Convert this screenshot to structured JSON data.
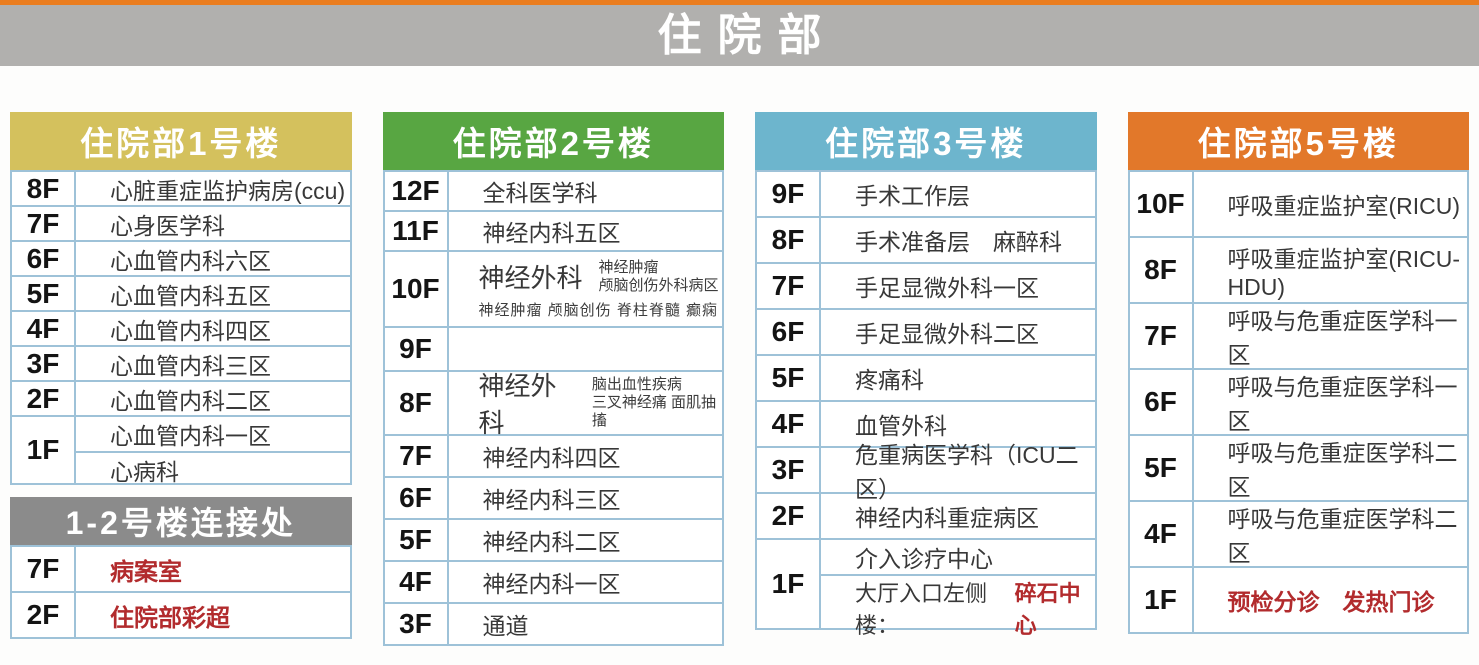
{
  "page": {
    "title": "住院部"
  },
  "colors": {
    "top_stripe": "#ea7d1f",
    "title_bar_gray": "#b1b0ae",
    "building1_header": "#d4c15d",
    "building2_header": "#58a642",
    "building3_header": "#6db5cd",
    "building5_header": "#e2782a",
    "connection_header": "#8b8b8b",
    "table_border": "#9ec2d8",
    "red_text": "#b22b2d"
  },
  "buildings": [
    {
      "name": "住院部1号楼",
      "rows": [
        {
          "floor": "8F",
          "dept": "心脏重症监护病房(ccu)"
        },
        {
          "floor": "7F",
          "dept": "心身医学科"
        },
        {
          "floor": "6F",
          "dept": "心血管内科六区"
        },
        {
          "floor": "5F",
          "dept": "心血管内科五区"
        },
        {
          "floor": "4F",
          "dept": "心血管内科四区"
        },
        {
          "floor": "3F",
          "dept": "心血管内科三区"
        },
        {
          "floor": "2F",
          "dept": "心血管内科二区"
        },
        {
          "floor": "1F",
          "dept": "心血管内科一区",
          "dept2": "心病科"
        }
      ]
    },
    {
      "name": "住院部2号楼",
      "rows": [
        {
          "floor": "12F",
          "dept": "全科医学科"
        },
        {
          "floor": "11F",
          "dept": "神经内科五区"
        },
        {
          "floor": "10F",
          "dept": "神经外科",
          "note_line1": "神经肿瘤",
          "note_line2": "颅脑创伤外科病区",
          "note_bottom": "神经肿瘤 颅脑创伤 脊柱脊髓 癫痫"
        },
        {
          "floor": "9F",
          "dept": ""
        },
        {
          "floor": "8F",
          "dept": "神经外科",
          "note_line1": "脑出血性疾病",
          "note_line2": "三叉神经痛 面肌抽搐"
        },
        {
          "floor": "7F",
          "dept": "神经内科四区"
        },
        {
          "floor": "6F",
          "dept": "神经内科三区"
        },
        {
          "floor": "5F",
          "dept": "神经内科二区"
        },
        {
          "floor": "4F",
          "dept": "神经内科一区"
        },
        {
          "floor": "3F",
          "dept": "通道"
        }
      ]
    },
    {
      "name": "住院部3号楼",
      "rows": [
        {
          "floor": "9F",
          "dept": "手术工作层"
        },
        {
          "floor": "8F",
          "dept": "手术准备层　麻醉科"
        },
        {
          "floor": "7F",
          "dept": "手足显微外科一区"
        },
        {
          "floor": "6F",
          "dept": "手足显微外科二区"
        },
        {
          "floor": "5F",
          "dept": "疼痛科"
        },
        {
          "floor": "4F",
          "dept": "血管外科"
        },
        {
          "floor": "3F",
          "dept": "危重病医学科（ICU二区）"
        },
        {
          "floor": "2F",
          "dept": "神经内科重症病区"
        },
        {
          "floor": "1F",
          "dept": "介入诊疗中心",
          "dept2_prefix": "大厅入口左侧楼：",
          "dept2_red": "碎石中心"
        }
      ]
    },
    {
      "name": "住院部5号楼",
      "rows": [
        {
          "floor": "10F",
          "dept": "呼吸重症监护室(RICU)"
        },
        {
          "floor": "8F",
          "dept": "呼吸重症监护室(RICU-HDU)"
        },
        {
          "floor": "7F",
          "dept": "呼吸与危重症医学科一区"
        },
        {
          "floor": "6F",
          "dept": "呼吸与危重症医学科一区"
        },
        {
          "floor": "5F",
          "dept": "呼吸与危重症医学科二区"
        },
        {
          "floor": "4F",
          "dept": "呼吸与危重症医学科二区"
        },
        {
          "floor": "1F",
          "dept_red": "预检分诊　发热门诊"
        }
      ]
    }
  ],
  "connection": {
    "name": "1-2号楼连接处",
    "rows": [
      {
        "floor": "7F",
        "dept_red": "病案室"
      },
      {
        "floor": "2F",
        "dept_red": "住院部彩超"
      }
    ]
  }
}
